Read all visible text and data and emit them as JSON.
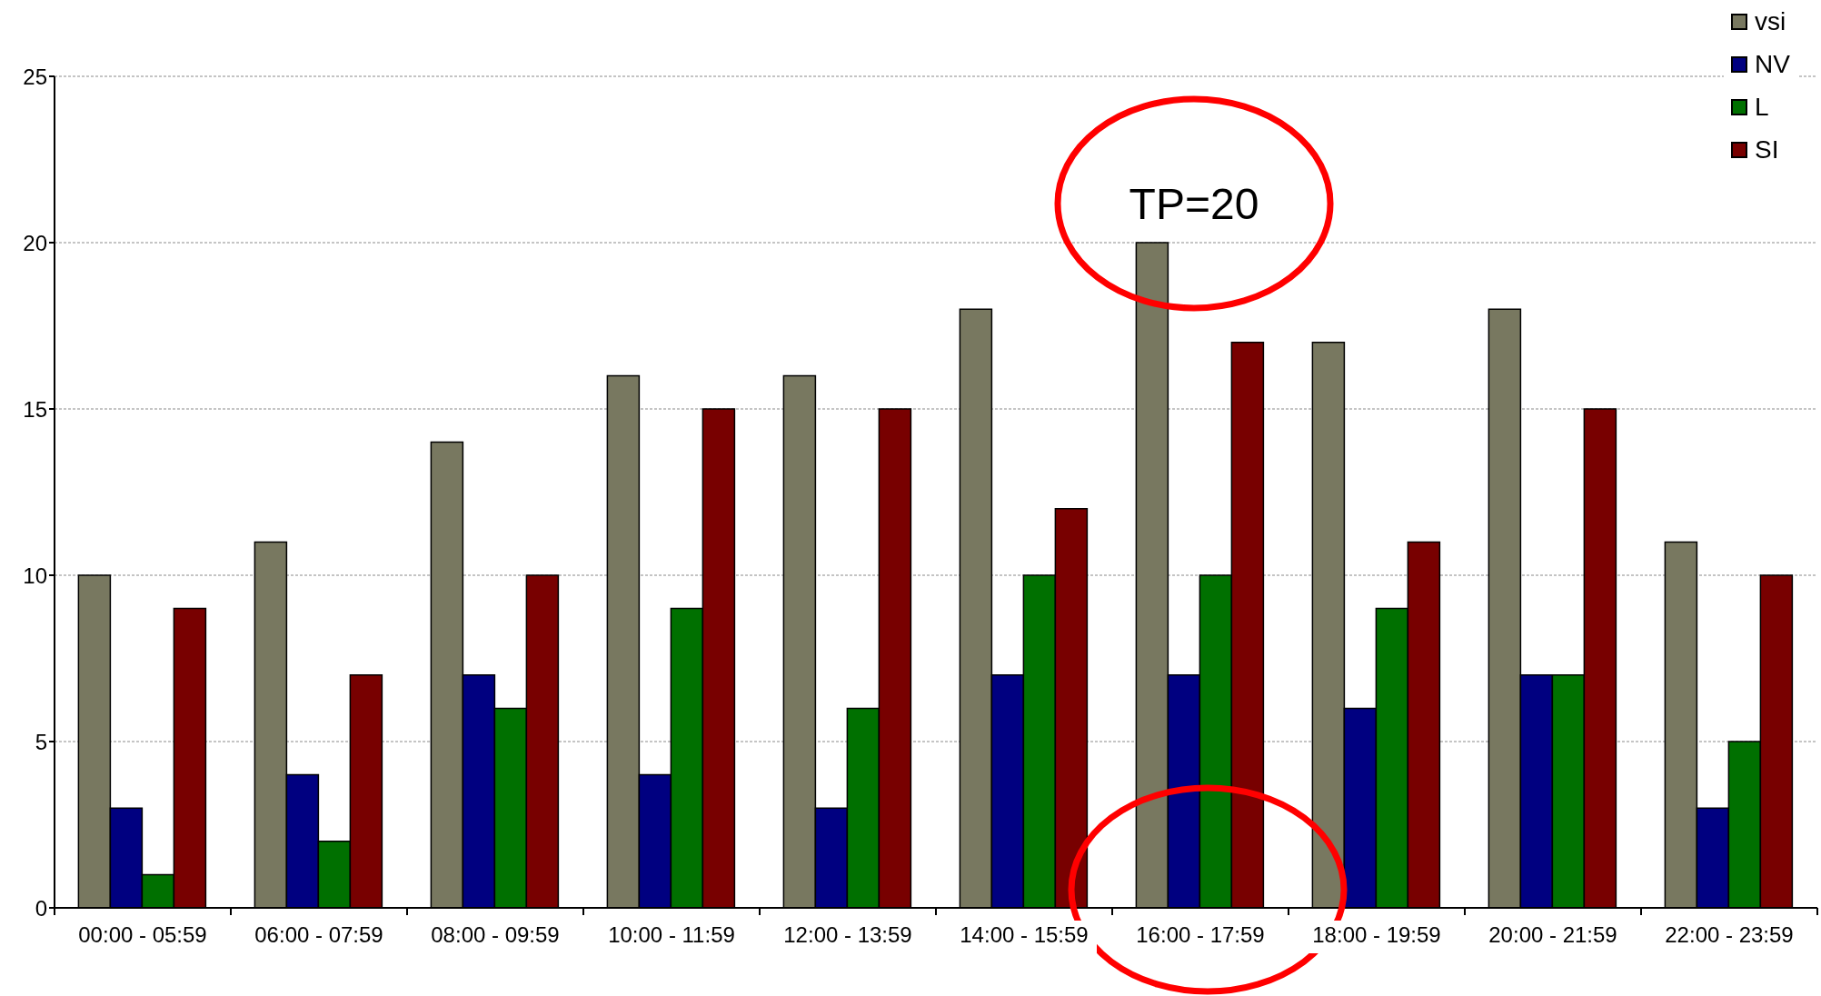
{
  "chart_data": {
    "type": "bar",
    "categories": [
      "00:00 - 05:59",
      "06:00 - 07:59",
      "08:00 - 09:59",
      "10:00 - 11:59",
      "12:00 - 13:59",
      "14:00 - 15:59",
      "16:00 - 17:59",
      "18:00 - 19:59",
      "20:00 - 21:59",
      "22:00 - 23:59"
    ],
    "series": [
      {
        "name": "vsi",
        "color": "#787860",
        "values": [
          10,
          11,
          14,
          16,
          16,
          18,
          20,
          17,
          18,
          11
        ]
      },
      {
        "name": "NV",
        "color": "#000080",
        "values": [
          3,
          4,
          7,
          4,
          3,
          7,
          7,
          6,
          7,
          3
        ]
      },
      {
        "name": "L",
        "color": "#007000",
        "values": [
          1,
          2,
          6,
          9,
          6,
          10,
          10,
          9,
          7,
          5
        ]
      },
      {
        "name": "SI",
        "color": "#780000",
        "values": [
          9,
          7,
          10,
          15,
          15,
          12,
          17,
          11,
          15,
          10
        ]
      }
    ],
    "ylim": [
      0,
      25
    ],
    "yticks": [
      0,
      5,
      10,
      15,
      20,
      25
    ],
    "grid": "y",
    "legend": "top right",
    "annotations": [
      "TP=20"
    ]
  }
}
